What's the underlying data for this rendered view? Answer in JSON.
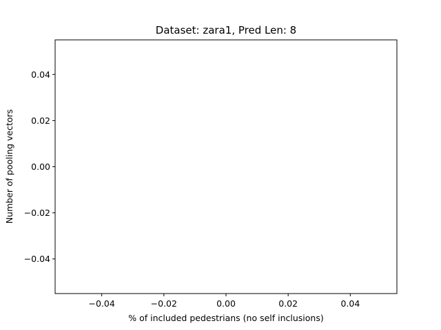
{
  "chart_data": {
    "type": "scatter",
    "title": "Dataset: zara1, Pred Len: 8",
    "xlabel": "% of included pedestrians (no self inclusions)",
    "ylabel": "Number of pooling vectors",
    "xlim": [
      -0.055,
      0.055
    ],
    "ylim": [
      -0.055,
      0.055
    ],
    "xticks": [
      -0.04,
      -0.02,
      0.0,
      0.02,
      0.04
    ],
    "xtick_labels": [
      "−0.04",
      "−0.02",
      "0.00",
      "0.02",
      "0.04"
    ],
    "yticks": [
      -0.04,
      -0.02,
      0.0,
      0.02,
      0.04
    ],
    "ytick_labels": [
      "−0.04",
      "−0.02",
      "0.00",
      "0.02",
      "0.04"
    ],
    "grid": false,
    "series": [
      {
        "x": [],
        "y": []
      }
    ]
  }
}
